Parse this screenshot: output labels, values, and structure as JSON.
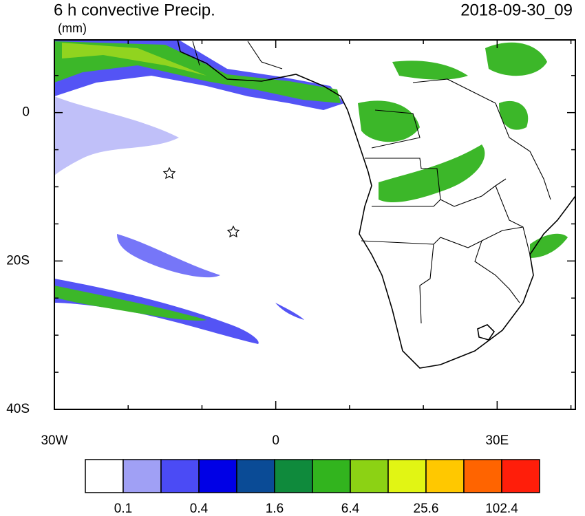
{
  "map": {
    "title": "6 h convective Precip.",
    "units": "(mm)",
    "date": "2018-09-30_09",
    "lon_range": [
      -30,
      40.6
    ],
    "lat_range": [
      9.8,
      -40
    ],
    "xticks": [
      {
        "value": -30,
        "label": "30W"
      },
      {
        "value": 0,
        "label": "0"
      },
      {
        "value": 30,
        "label": "30E"
      }
    ],
    "xminor": [
      -20,
      -10,
      10,
      20,
      40
    ],
    "yticks": [
      {
        "value": 0,
        "label": "0"
      },
      {
        "value": -20,
        "label": "20S"
      },
      {
        "value": -40,
        "label": "40S"
      }
    ],
    "yminor": [
      5,
      -5,
      -10,
      -15,
      -25,
      -30,
      -35
    ],
    "colorbar": {
      "colors": [
        "#ffffff",
        "#a0a0f5",
        "#4b4bf5",
        "#0000e6",
        "#0a4b96",
        "#0f8a3c",
        "#32b41e",
        "#8cd214",
        "#e1f514",
        "#ffc800",
        "#ff6400",
        "#ff1e0a"
      ],
      "labels": [
        0.1,
        0.4,
        1.6,
        6.4,
        25.6,
        102.4
      ]
    }
  }
}
